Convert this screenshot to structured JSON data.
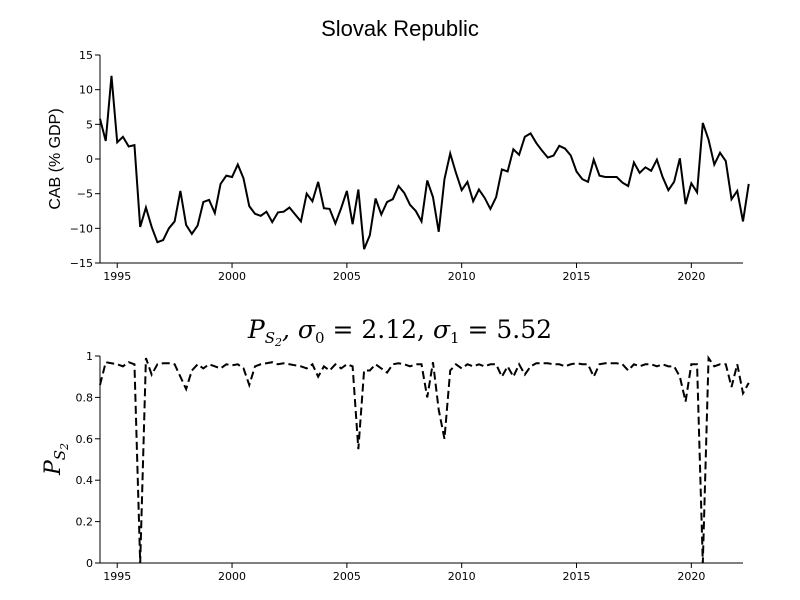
{
  "chart_data": [
    {
      "type": "line",
      "title": "Slovak Republic",
      "ylabel": "CAB (% GDP)",
      "xlim": [
        1994.25,
        2022.25
      ],
      "ylim": [
        -15,
        15
      ],
      "yticks": [
        -15,
        -10,
        -5,
        0,
        5,
        10,
        15
      ],
      "ytick_labels": [
        "−15",
        "−10",
        "−5",
        "0",
        "5",
        "10",
        "15"
      ],
      "xticks": [
        1995,
        2000,
        2005,
        2010,
        2015,
        2020
      ],
      "xtick_labels": [
        "1995",
        "2000",
        "2005",
        "2010",
        "2015",
        "2020"
      ],
      "line_style": "solid",
      "line_color": "#000000",
      "x_start": 1994.25,
      "x_step": 0.25,
      "values": [
        5.8,
        2.6,
        12.0,
        2.4,
        3.2,
        1.8,
        2.0,
        -9.8,
        -7.0,
        -9.8,
        -12.0,
        -11.7,
        -10.0,
        -9.0,
        -4.6,
        -9.5,
        -10.8,
        -9.6,
        -6.2,
        -5.9,
        -7.8,
        -3.6,
        -2.4,
        -2.6,
        -0.8,
        -2.8,
        -6.8,
        -7.9,
        -8.2,
        -7.6,
        -9.1,
        -7.7,
        -7.6,
        -7.0,
        -8.0,
        -9.0,
        -5.0,
        -6.1,
        -3.3,
        -7.1,
        -7.2,
        -9.3,
        -7.1,
        -4.6,
        -9.4,
        -4.4,
        -13.0,
        -11.0,
        -5.7,
        -8.0,
        -6.2,
        -5.8,
        -3.9,
        -4.9,
        -6.6,
        -7.5,
        -9.0,
        -3.1,
        -5.5,
        -10.5,
        -2.9,
        0.8,
        -2.0,
        -4.5,
        -3.3,
        -6.1,
        -4.4,
        -5.6,
        -7.2,
        -5.5,
        -1.5,
        -1.8,
        1.4,
        0.6,
        3.2,
        3.7,
        2.3,
        1.2,
        0.2,
        0.5,
        1.9,
        1.5,
        0.5,
        -1.8,
        -2.9,
        -3.3,
        -0.1,
        -2.4,
        -2.6,
        -2.6,
        -2.6,
        -3.4,
        -3.9,
        -0.5,
        -2.0,
        -1.2,
        -1.7,
        -0.1,
        -2.6,
        -4.5,
        -3.3,
        0.1,
        -6.5,
        -3.5,
        -4.8,
        5.2,
        2.8,
        -0.8,
        0.9,
        -0.3,
        -5.8,
        -4.6,
        -9.0,
        -3.6
      ]
    },
    {
      "type": "line",
      "title": "P_{S_2}, σ_0 = 2.12, σ_1 = 5.52",
      "ylabel": "P_{S_2}",
      "xlim": [
        1994.25,
        2022.25
      ],
      "ylim": [
        0,
        1
      ],
      "yticks": [
        0,
        0.2,
        0.4,
        0.6,
        0.8,
        1
      ],
      "ytick_labels": [
        "0",
        "0.2",
        "0.4",
        "0.6",
        "0.8",
        "1"
      ],
      "xticks": [
        1995,
        2000,
        2005,
        2010,
        2015,
        2020
      ],
      "xtick_labels": [
        "1995",
        "2000",
        "2005",
        "2010",
        "2015",
        "2020"
      ],
      "line_style": "dashed",
      "line_color": "#000000",
      "x_start": 1994.25,
      "x_step": 0.25,
      "values": [
        0.86,
        0.97,
        0.965,
        0.96,
        0.95,
        0.97,
        0.96,
        0.0,
        0.99,
        0.91,
        0.96,
        0.965,
        0.965,
        0.96,
        0.9,
        0.84,
        0.93,
        0.96,
        0.94,
        0.96,
        0.95,
        0.94,
        0.96,
        0.955,
        0.96,
        0.94,
        0.86,
        0.95,
        0.96,
        0.965,
        0.97,
        0.96,
        0.965,
        0.96,
        0.955,
        0.95,
        0.94,
        0.96,
        0.9,
        0.95,
        0.93,
        0.96,
        0.94,
        0.96,
        0.95,
        0.55,
        0.93,
        0.93,
        0.96,
        0.94,
        0.92,
        0.96,
        0.965,
        0.96,
        0.95,
        0.96,
        0.96,
        0.8,
        0.97,
        0.74,
        0.6,
        0.93,
        0.96,
        0.94,
        0.96,
        0.95,
        0.96,
        0.95,
        0.96,
        0.96,
        0.9,
        0.95,
        0.9,
        0.96,
        0.91,
        0.95,
        0.965,
        0.965,
        0.965,
        0.96,
        0.96,
        0.95,
        0.96,
        0.965,
        0.96,
        0.96,
        0.9,
        0.96,
        0.965,
        0.965,
        0.965,
        0.96,
        0.93,
        0.96,
        0.95,
        0.96,
        0.96,
        0.95,
        0.96,
        0.95,
        0.95,
        0.9,
        0.78,
        0.96,
        0.96,
        0.0,
        0.99,
        0.95,
        0.96,
        0.96,
        0.85,
        0.96,
        0.82,
        0.87
      ]
    }
  ]
}
